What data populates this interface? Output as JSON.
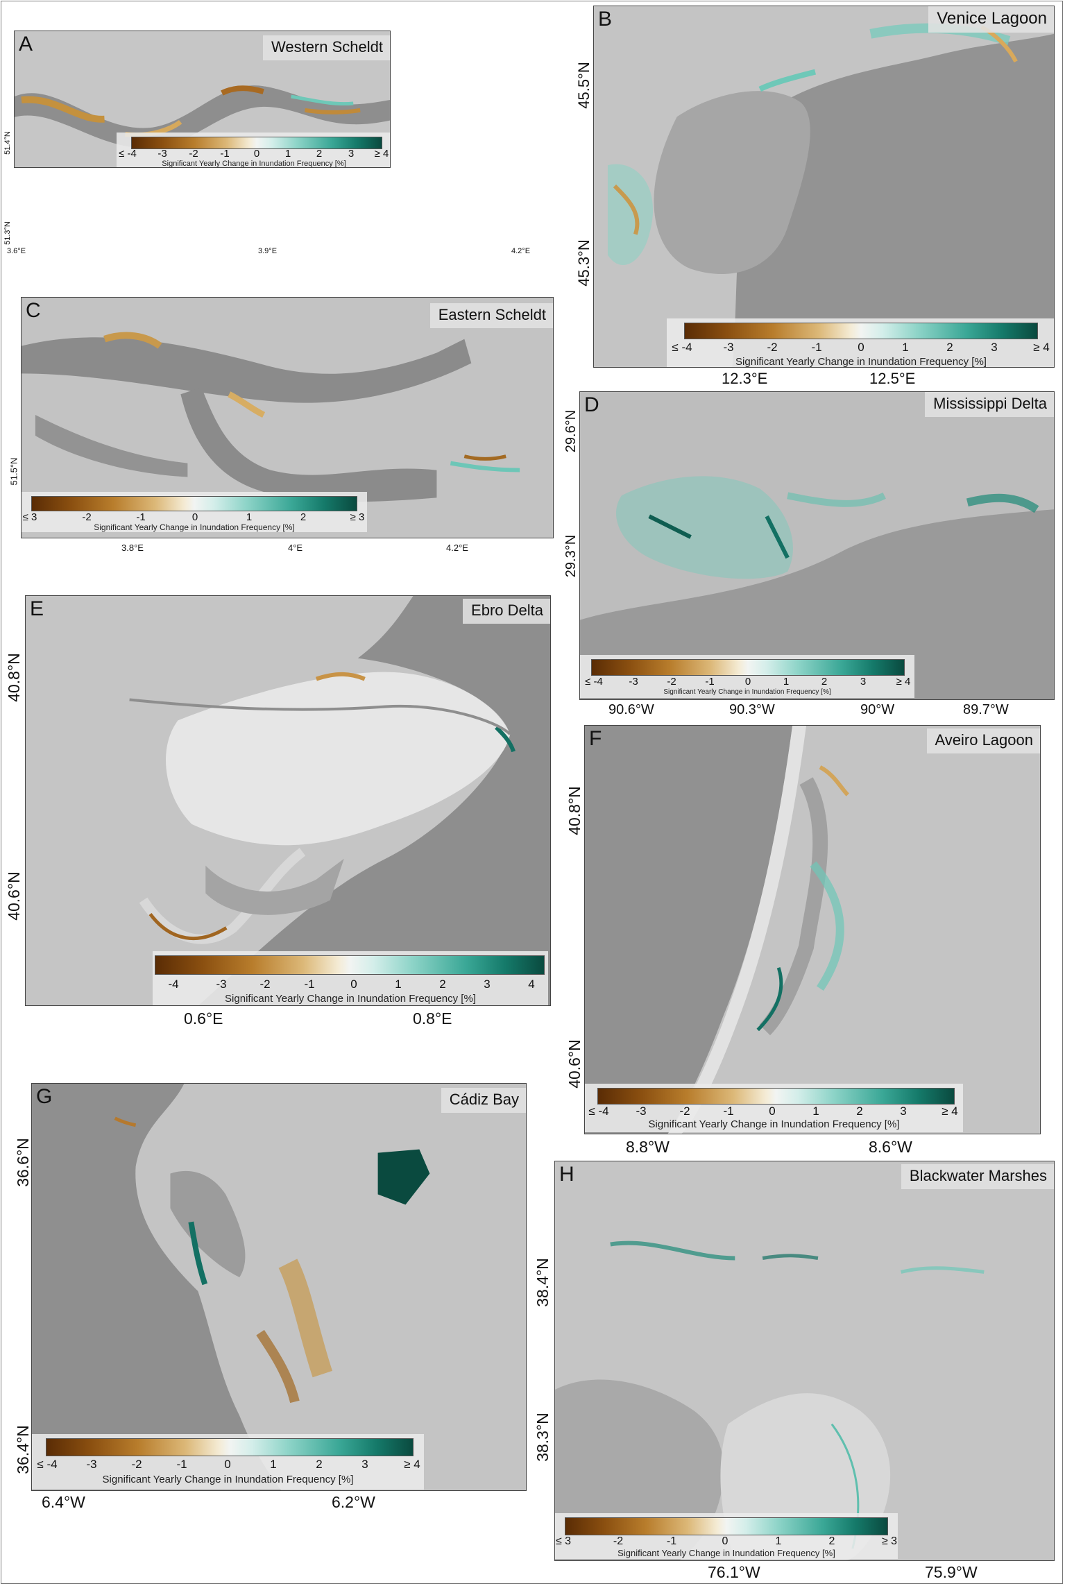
{
  "panels": {
    "A": {
      "letter": "A",
      "title": "Western Scheldt",
      "colorbar": {
        "ticks": [
          "≤ -4",
          "-3",
          "-2",
          "-1",
          "0",
          "1",
          "2",
          "3",
          "≥ 4"
        ],
        "label": "Significant Yearly Change in Inundation Frequency [%]"
      },
      "x_ticks": [
        "3.6°E",
        "3.9°E",
        "4.2°E"
      ],
      "y_ticks": [
        "51.4°N",
        "51.3°N"
      ]
    },
    "B": {
      "letter": "B",
      "title": "Venice Lagoon",
      "colorbar": {
        "ticks": [
          "≤ -4",
          "-3",
          "-2",
          "-1",
          "0",
          "1",
          "2",
          "3",
          "≥ 4"
        ],
        "label": "Significant Yearly Change in Inundation Frequency [%]"
      },
      "x_ticks": [
        "12.3°E",
        "12.5°E"
      ],
      "y_ticks": [
        "45.5°N",
        "45.3°N"
      ]
    },
    "C": {
      "letter": "C",
      "title": "Eastern Scheldt",
      "colorbar": {
        "ticks": [
          "≤ 3",
          "-2",
          "-1",
          "0",
          "1",
          "2",
          "≥ 3"
        ],
        "label": "Significant Yearly Change in Inundation Frequency [%]"
      },
      "x_ticks": [
        "3.8°E",
        "4°E",
        "4.2°E"
      ],
      "y_ticks": [
        "51.5°N"
      ]
    },
    "D": {
      "letter": "D",
      "title": "Mississippi Delta",
      "colorbar": {
        "ticks": [
          "≤ -4",
          "-3",
          "-2",
          "-1",
          "0",
          "1",
          "2",
          "3",
          "≥ 4"
        ],
        "label": "Significant Yearly Change in Inundation Frequency [%]"
      },
      "x_ticks": [
        "90.6°W",
        "90.3°W",
        "90°W",
        "89.7°W"
      ],
      "y_ticks": [
        "29.6°N",
        "29.3°N"
      ]
    },
    "E": {
      "letter": "E",
      "title": "Ebro Delta",
      "colorbar": {
        "ticks": [
          "-4",
          "-3",
          "-2",
          "-1",
          "0",
          "1",
          "2",
          "3",
          "4"
        ],
        "label": "Significant Yearly Change in Inundation Frequency [%]"
      },
      "x_ticks": [
        "0.6°E",
        "0.8°E"
      ],
      "y_ticks": [
        "40.8°N",
        "40.6°N"
      ]
    },
    "F": {
      "letter": "F",
      "title": "Aveiro Lagoon",
      "colorbar": {
        "ticks": [
          "≤ -4",
          "-3",
          "-2",
          "-1",
          "0",
          "1",
          "2",
          "3",
          "≥ 4"
        ],
        "label": "Significant Yearly Change in Inundation Frequency [%]"
      },
      "x_ticks": [
        "8.8°W",
        "8.6°W"
      ],
      "y_ticks": [
        "40.8°N",
        "40.6°N"
      ]
    },
    "G": {
      "letter": "G",
      "title": "Cádiz Bay",
      "colorbar": {
        "ticks": [
          "≤ -4",
          "-3",
          "-2",
          "-1",
          "0",
          "1",
          "2",
          "3",
          "≥ 4"
        ],
        "label": "Significant Yearly Change in Inundation Frequency [%]"
      },
      "x_ticks": [
        "6.4°W",
        "6.2°W"
      ],
      "y_ticks": [
        "36.6°N",
        "36.4°N"
      ]
    },
    "H": {
      "letter": "H",
      "title": "Blackwater Marshes",
      "colorbar": {
        "ticks": [
          "≤ 3",
          "-2",
          "-1",
          "0",
          "1",
          "2",
          "≥ 3"
        ],
        "label": "Significant Yearly Change in Inundation Frequency [%]"
      },
      "x_ticks": [
        "76.1°W",
        "75.9°W"
      ],
      "y_ticks": [
        "38.4°N",
        "38.3°N"
      ]
    }
  },
  "colors": {
    "negative_max": "#5a2c05",
    "neutral": "#f2f4f2",
    "positive_max": "#0a4a3f",
    "water": "#8f8f8f",
    "land": "#c8c8c8"
  }
}
